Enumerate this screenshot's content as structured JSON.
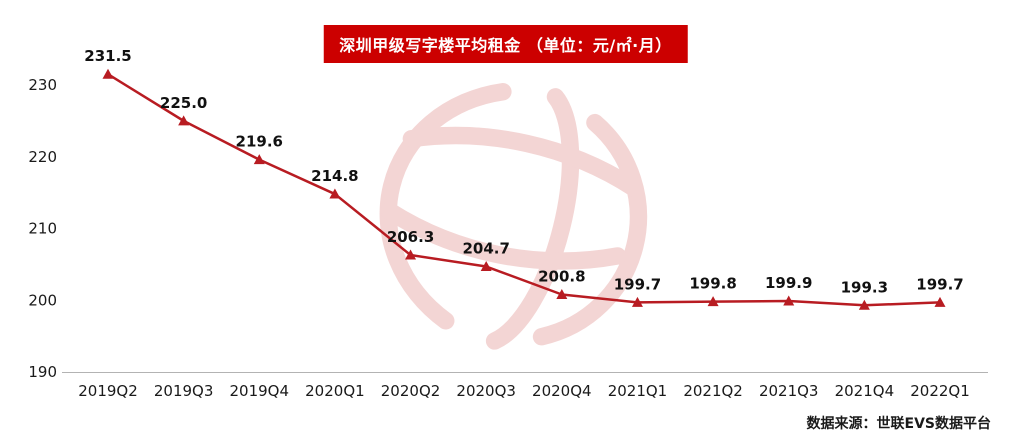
{
  "title": "深圳甲级写字楼平均租金 （单位：元/㎡·月）",
  "source": "数据来源：世联EVS数据平台",
  "colors": {
    "title_bg": "#cc0000",
    "title_text": "#ffffff",
    "line": "#b81c22",
    "marker": "#b81c22",
    "watermark": "#eab3b1",
    "axis": "#b3b3b3"
  },
  "chart_data": {
    "type": "line",
    "title": "深圳甲级写字楼平均租金 （单位：元/㎡·月）",
    "categories": [
      "2019Q2",
      "2019Q3",
      "2019Q4",
      "2020Q1",
      "2020Q2",
      "2020Q3",
      "2020Q4",
      "2021Q1",
      "2021Q2",
      "2021Q3",
      "2021Q4",
      "2022Q1"
    ],
    "values": [
      231.5,
      225.0,
      219.6,
      214.8,
      206.3,
      204.7,
      200.8,
      199.7,
      199.8,
      199.9,
      199.3,
      199.7
    ],
    "point_labels": [
      "231.5",
      "225.0",
      "219.6",
      "214.8",
      "206.3",
      "204.7",
      "200.8",
      "199.7",
      "199.8",
      "199.9",
      "199.3",
      "199.7"
    ],
    "xlabel": "",
    "ylabel": "",
    "ylim": [
      190,
      235
    ],
    "yticks": [
      190,
      200,
      210,
      220,
      230
    ],
    "grid": false,
    "legend_position": "none",
    "marker_shape": "triangle-up",
    "source_note": "数据来源：世联EVS数据平台"
  }
}
